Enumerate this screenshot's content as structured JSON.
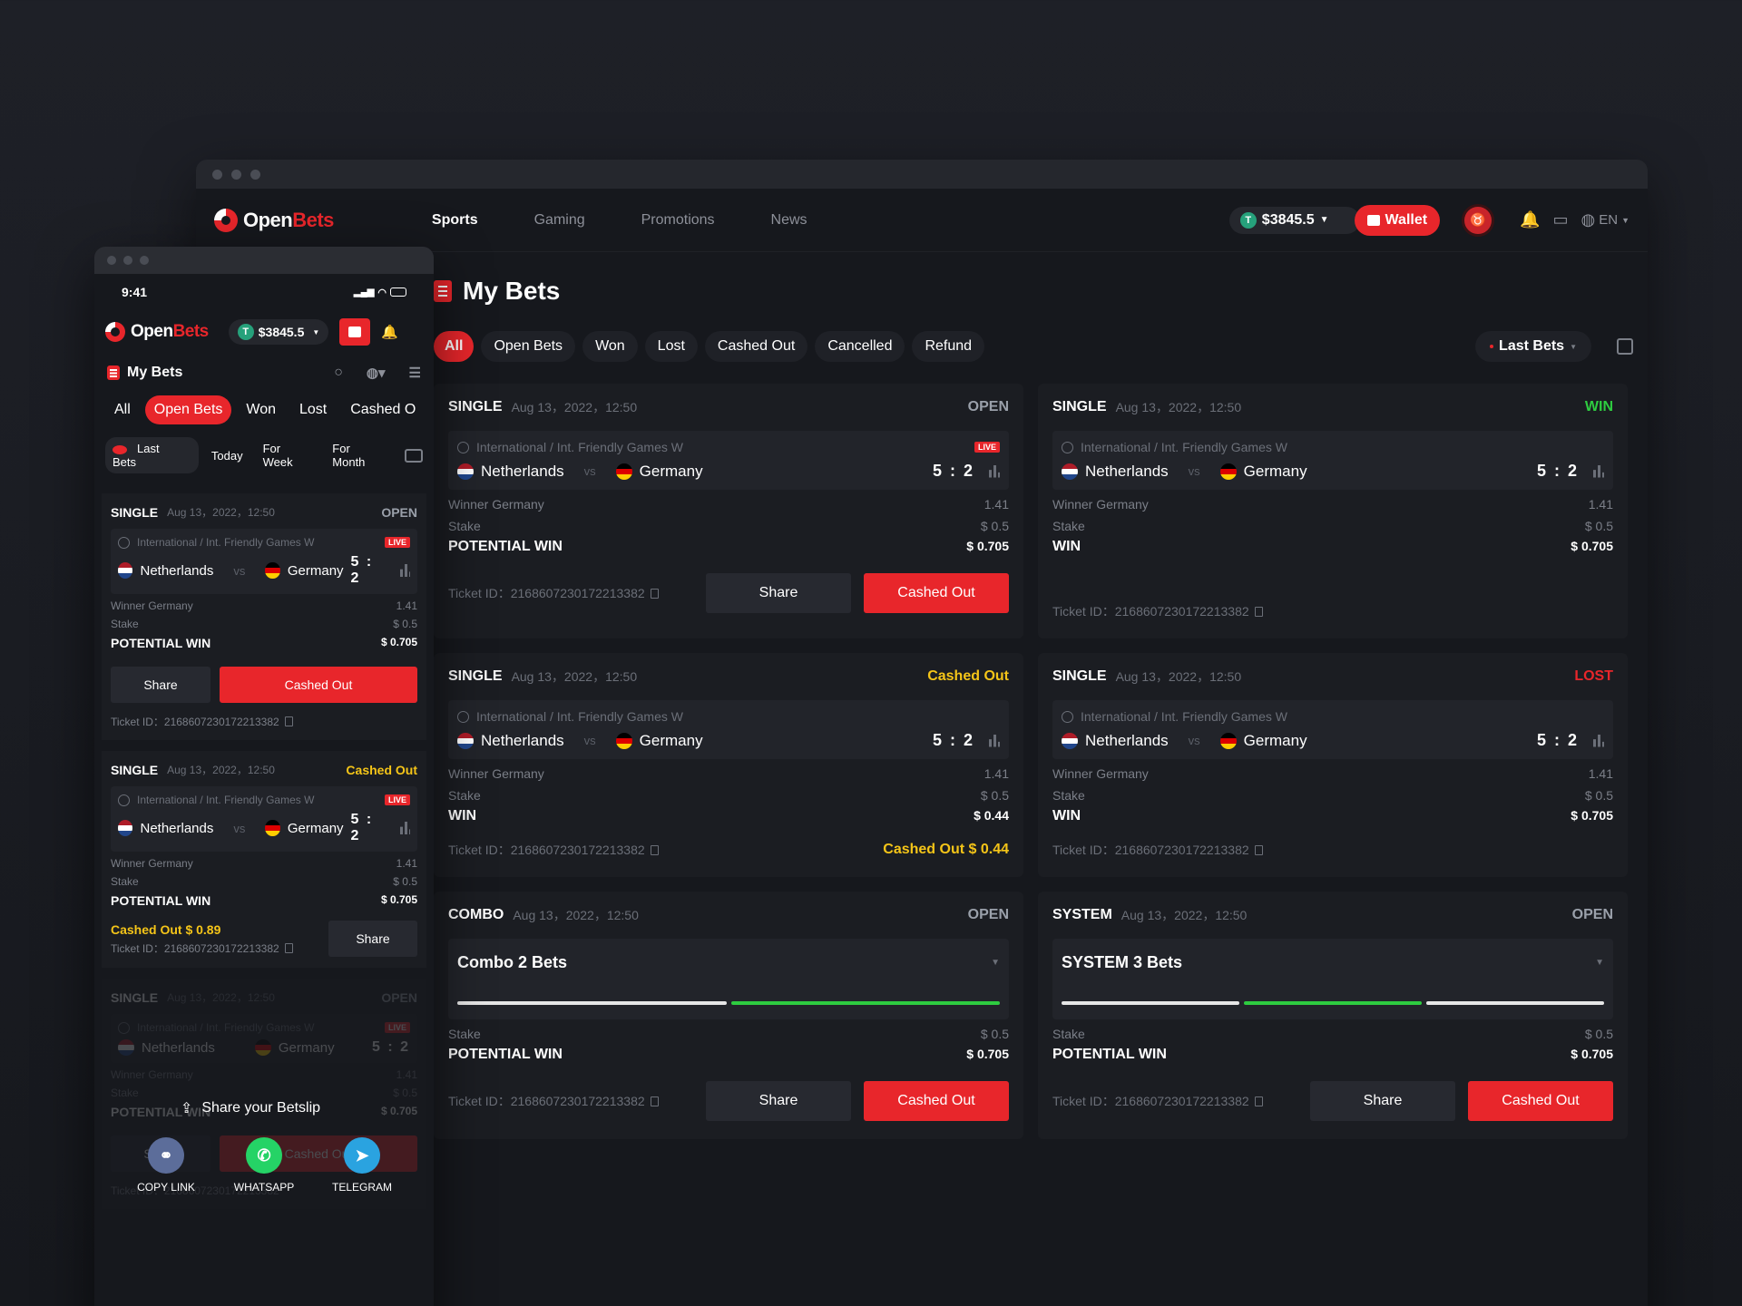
{
  "desktop": {
    "brand": {
      "open": "Open",
      "bets": "Bets"
    },
    "nav": [
      "Sports",
      "Gaming",
      "Promotions",
      "News"
    ],
    "balance": "$3845.5",
    "wallet_label": "Wallet",
    "lang": "EN",
    "page_title": "My Bets",
    "filters": [
      "All",
      "Open Bets",
      "Won",
      "Lost",
      "Cashed Out",
      "Cancelled",
      "Refund"
    ],
    "range_label": "Last Bets",
    "cards": [
      {
        "type": "SINGLE",
        "date": "Aug 13，2022，12:50",
        "status": "OPEN",
        "league": "International / Int. Friendly Games W",
        "live": "LIVE",
        "home": "Netherlands",
        "vs": "vs",
        "away": "Germany",
        "score": "5 : 2",
        "selection": "Winner Germany",
        "odds": "1.41",
        "stake_label": "Stake",
        "stake": "$ 0.5",
        "win_label": "POTENTIAL WIN",
        "win": "$ 0.705",
        "ticket": "Ticket ID：2168607230172213382",
        "share": "Share",
        "cashout": "Cashed Out"
      },
      {
        "type": "SINGLE",
        "date": "Aug 13，2022，12:50",
        "status": "WIN",
        "league": "International / Int. Friendly Games W",
        "home": "Netherlands",
        "vs": "vs",
        "away": "Germany",
        "score": "5 : 2",
        "selection": "Winner Germany",
        "odds": "1.41",
        "stake_label": "Stake",
        "stake": "$ 0.5",
        "win_label": "WIN",
        "win": "$ 0.705",
        "ticket": "Ticket ID：2168607230172213382"
      },
      {
        "type": "SINGLE",
        "date": "Aug 13，2022，12:50",
        "status": "Cashed Out",
        "league": "International / Int. Friendly Games W",
        "home": "Netherlands",
        "vs": "vs",
        "away": "Germany",
        "score": "5 : 2",
        "selection": "Winner Germany",
        "odds": "1.41",
        "stake_label": "Stake",
        "stake": "$ 0.5",
        "win_label": "WIN",
        "win": "$ 0.44",
        "ticket": "Ticket ID：2168607230172213382",
        "cashed_amount": "Cashed Out $ 0.44"
      },
      {
        "type": "SINGLE",
        "date": "Aug 13，2022，12:50",
        "status": "LOST",
        "league": "International / Int. Friendly Games W",
        "home": "Netherlands",
        "vs": "vs",
        "away": "Germany",
        "score": "5 : 2",
        "selection": "Winner Germany",
        "odds": "1.41",
        "stake_label": "Stake",
        "stake": "$ 0.5",
        "win_label": "WIN",
        "win": "$ 0.705",
        "ticket": "Ticket ID：2168607230172213382"
      },
      {
        "type": "COMBO",
        "date": "Aug 13，2022，12:50",
        "status": "OPEN",
        "title": "Combo 2 Bets",
        "legs": [
          "settled",
          "won"
        ],
        "stake_label": "Stake",
        "stake": "$ 0.5",
        "win_label": "POTENTIAL WIN",
        "win": "$ 0.705",
        "ticket": "Ticket ID：2168607230172213382",
        "share": "Share",
        "cashout": "Cashed Out"
      },
      {
        "type": "SYSTEM",
        "date": "Aug 13，2022，12:50",
        "status": "OPEN",
        "title": "SYSTEM 3 Bets",
        "legs": [
          "settled",
          "won",
          "settled"
        ],
        "stake_label": "Stake",
        "stake": "$ 0.5",
        "win_label": "POTENTIAL WIN",
        "win": "$ 0.705",
        "ticket": "Ticket ID：2168607230172213382",
        "share": "Share",
        "cashout": "Cashed Out"
      }
    ]
  },
  "mobile": {
    "time": "9:41",
    "balance": "$3845.5",
    "page_title": "My Bets",
    "filters": [
      "All",
      "Open Bets",
      "Won",
      "Lost",
      "Cashed O"
    ],
    "periods": [
      "Last Bets",
      "Today",
      "For Week",
      "For Month"
    ],
    "card1": {
      "type": "SINGLE",
      "date": "Aug 13，2022，12:50",
      "status": "OPEN",
      "league": "International / Int. Friendly Games W",
      "live": "LIVE",
      "home": "Netherlands",
      "vs": "vs",
      "away": "Germany",
      "score": "5 : 2",
      "selection": "Winner Germany",
      "odds": "1.41",
      "stake_label": "Stake",
      "stake": "$ 0.5",
      "win_label": "POTENTIAL WIN",
      "win": "$ 0.705",
      "share": "Share",
      "cashout": "Cashed Out",
      "ticket": "Ticket ID：2168607230172213382"
    },
    "card2": {
      "type": "SINGLE",
      "date": "Aug 13，2022，12:50",
      "status": "Cashed Out",
      "league": "International / Int. Friendly Games W",
      "live": "LIVE",
      "home": "Netherlands",
      "vs": "vs",
      "away": "Germany",
      "score": "5 : 2",
      "selection": "Winner Germany",
      "odds": "1.41",
      "stake_label": "Stake",
      "stake": "$ 0.5",
      "win_label": "POTENTIAL WIN",
      "win": "$ 0.705",
      "cashed_amount": "Cashed Out $ 0.89",
      "share": "Share",
      "ticket": "Ticket ID：2168607230172213382"
    },
    "card3": {
      "type": "SINGLE",
      "date": "Aug 13，2022，12:50",
      "status": "OPEN",
      "league": "International / Int. Friendly Games W",
      "live": "LIVE",
      "home": "Netherlands",
      "away": "Germany",
      "score": "5 : 2",
      "selection": "Winner Germany",
      "odds": "1.41",
      "stake_label": "Stake",
      "stake": "$ 0.5",
      "win_label": "POTENTIAL WIN",
      "win": "$ 0.705",
      "share": "Share",
      "cashout": "Cashed Out",
      "ticket": "Ticket ID：2168607230172213382"
    },
    "share_sheet": {
      "title": "Share your Betslip",
      "options": [
        "COPY LINK",
        "WHATSAPP",
        "TELEGRAM"
      ]
    }
  },
  "colors": {
    "accent": "#e8262b",
    "win": "#2ecc40",
    "cashed": "#f5c518",
    "bg": "#16181d",
    "card": "#1b1d22"
  }
}
